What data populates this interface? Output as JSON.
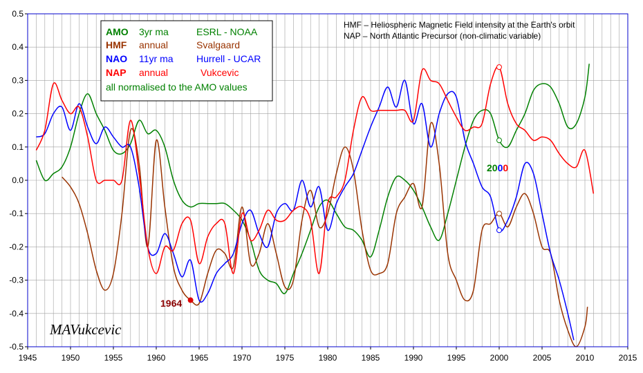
{
  "chart_data": {
    "type": "line",
    "xlim": [
      1945,
      2015
    ],
    "ylim": [
      -0.5,
      0.5
    ],
    "x_ticks": [
      "1945",
      "1950",
      "1955",
      "1960",
      "1965",
      "1970",
      "1975",
      "1980",
      "1985",
      "1990",
      "1995",
      "2000",
      "2005",
      "2010",
      "2015"
    ],
    "y_ticks": [
      "0.5",
      "0.4",
      "0.3",
      "0.2",
      "0.1",
      "0.0",
      "-0.1",
      "-0.2",
      "-0.3",
      "-0.4",
      "-0.5"
    ],
    "grid": true,
    "notes": [
      "HMF – Heliospheric Magnetic Field intensity at the Earth's orbit",
      "NAP – North Atlantic Precursor (non-climatic variable)"
    ],
    "legend": {
      "placement": "top-left",
      "rows": [
        {
          "code": "AMO",
          "avg": "3yr ma",
          "source": "ESRL - NOAA",
          "color": "#008000"
        },
        {
          "code": "HMF",
          "avg": "annual",
          "source": "Svalgaard",
          "color": "#993300"
        },
        {
          "code": "NAO",
          "avg": "11yr ma",
          "source": "Hurrell - UCAR",
          "color": "#0000ff"
        },
        {
          "code": "NAP",
          "avg": "annual",
          "source": "Vukcevic",
          "color": "#ff0000"
        }
      ],
      "footer": "all normalised to the AMO values"
    },
    "annotations": {
      "year_1964": "1964",
      "year_2000_a": "20",
      "year_2000_b": "0",
      "year_2000_c": "0",
      "signature": "MAVukcevic"
    },
    "series": [
      {
        "name": "AMO",
        "color": "#008000",
        "points": [
          [
            1946,
            0.06
          ],
          [
            1947,
            0.0
          ],
          [
            1948,
            0.02
          ],
          [
            1949,
            0.04
          ],
          [
            1950,
            0.1
          ],
          [
            1951,
            0.2
          ],
          [
            1952,
            0.26
          ],
          [
            1953,
            0.2
          ],
          [
            1954,
            0.15
          ],
          [
            1955,
            0.09
          ],
          [
            1956,
            0.08
          ],
          [
            1957,
            0.11
          ],
          [
            1958,
            0.18
          ],
          [
            1959,
            0.14
          ],
          [
            1960,
            0.15
          ],
          [
            1961,
            0.1
          ],
          [
            1962,
            0.0
          ],
          [
            1963,
            -0.06
          ],
          [
            1964,
            -0.08
          ],
          [
            1965,
            -0.07
          ],
          [
            1966,
            -0.07
          ],
          [
            1967,
            -0.07
          ],
          [
            1968,
            -0.07
          ],
          [
            1969,
            -0.09
          ],
          [
            1970,
            -0.12
          ],
          [
            1971,
            -0.18
          ],
          [
            1972,
            -0.27
          ],
          [
            1973,
            -0.3
          ],
          [
            1974,
            -0.31
          ],
          [
            1975,
            -0.34
          ],
          [
            1976,
            -0.28
          ],
          [
            1977,
            -0.22
          ],
          [
            1978,
            -0.15
          ],
          [
            1979,
            -0.08
          ],
          [
            1980,
            -0.06
          ],
          [
            1981,
            -0.1
          ],
          [
            1982,
            -0.14
          ],
          [
            1983,
            -0.15
          ],
          [
            1984,
            -0.18
          ],
          [
            1985,
            -0.23
          ],
          [
            1986,
            -0.15
          ],
          [
            1987,
            -0.05
          ],
          [
            1988,
            0.01
          ],
          [
            1989,
            0.0
          ],
          [
            1990,
            -0.03
          ],
          [
            1991,
            -0.08
          ],
          [
            1992,
            -0.14
          ],
          [
            1993,
            -0.18
          ],
          [
            1994,
            -0.1
          ],
          [
            1995,
            0.0
          ],
          [
            1996,
            0.1
          ],
          [
            1997,
            0.18
          ],
          [
            1998,
            0.21
          ],
          [
            1999,
            0.2
          ],
          [
            2000,
            0.12
          ],
          [
            2001,
            0.1
          ],
          [
            2002,
            0.15
          ],
          [
            2003,
            0.2
          ],
          [
            2004,
            0.27
          ],
          [
            2005,
            0.29
          ],
          [
            2006,
            0.28
          ],
          [
            2007,
            0.23
          ],
          [
            2008,
            0.16
          ],
          [
            2009,
            0.17
          ],
          [
            2010,
            0.25
          ],
          [
            2010.5,
            0.35
          ]
        ]
      },
      {
        "name": "HMF",
        "color": "#993300",
        "points": [
          [
            1949,
            0.01
          ],
          [
            1950,
            -0.02
          ],
          [
            1951,
            -0.07
          ],
          [
            1952,
            -0.16
          ],
          [
            1953,
            -0.27
          ],
          [
            1954,
            -0.33
          ],
          [
            1955,
            -0.28
          ],
          [
            1956,
            -0.1
          ],
          [
            1957,
            0.15
          ],
          [
            1958,
            0.05
          ],
          [
            1959,
            -0.2
          ],
          [
            1960,
            0.12
          ],
          [
            1961,
            -0.08
          ],
          [
            1962,
            -0.26
          ],
          [
            1963,
            -0.33
          ],
          [
            1964,
            -0.36
          ],
          [
            1965,
            -0.37
          ],
          [
            1966,
            -0.28
          ],
          [
            1967,
            -0.21
          ],
          [
            1968,
            -0.22
          ],
          [
            1969,
            -0.26
          ],
          [
            1970,
            -0.08
          ],
          [
            1971,
            -0.25
          ],
          [
            1972,
            -0.22
          ],
          [
            1973,
            -0.13
          ],
          [
            1974,
            -0.22
          ],
          [
            1975,
            -0.32
          ],
          [
            1976,
            -0.3
          ],
          [
            1977,
            -0.12
          ],
          [
            1978,
            -0.03
          ],
          [
            1979,
            -0.14
          ],
          [
            1980,
            -0.1
          ],
          [
            1981,
            0.02
          ],
          [
            1982,
            0.1
          ],
          [
            1983,
            0.03
          ],
          [
            1984,
            -0.15
          ],
          [
            1985,
            -0.27
          ],
          [
            1986,
            -0.28
          ],
          [
            1987,
            -0.25
          ],
          [
            1988,
            -0.1
          ],
          [
            1989,
            -0.05
          ],
          [
            1990,
            -0.01
          ],
          [
            1991,
            -0.08
          ],
          [
            1992,
            0.17
          ],
          [
            1993,
            0.05
          ],
          [
            1994,
            -0.22
          ],
          [
            1995,
            -0.3
          ],
          [
            1996,
            -0.36
          ],
          [
            1997,
            -0.33
          ],
          [
            1998,
            -0.15
          ],
          [
            1999,
            -0.13
          ],
          [
            2000,
            -0.1
          ],
          [
            2001,
            -0.14
          ],
          [
            2002,
            -0.08
          ],
          [
            2003,
            -0.04
          ],
          [
            2004,
            -0.1
          ],
          [
            2005,
            -0.2
          ],
          [
            2006,
            -0.22
          ],
          [
            2007,
            -0.36
          ],
          [
            2008,
            -0.45
          ],
          [
            2009,
            -0.5
          ],
          [
            2010,
            -0.44
          ],
          [
            2010.3,
            -0.38
          ]
        ]
      },
      {
        "name": "NAO",
        "color": "#0000ff",
        "points": [
          [
            1946,
            0.13
          ],
          [
            1947,
            0.14
          ],
          [
            1948,
            0.2
          ],
          [
            1949,
            0.22
          ],
          [
            1950,
            0.15
          ],
          [
            1951,
            0.23
          ],
          [
            1952,
            0.16
          ],
          [
            1953,
            0.11
          ],
          [
            1954,
            0.16
          ],
          [
            1955,
            0.13
          ],
          [
            1956,
            0.1
          ],
          [
            1957,
            0.1
          ],
          [
            1958,
            -0.02
          ],
          [
            1959,
            -0.2
          ],
          [
            1960,
            -0.22
          ],
          [
            1961,
            -0.16
          ],
          [
            1962,
            -0.22
          ],
          [
            1963,
            -0.29
          ],
          [
            1964,
            -0.24
          ],
          [
            1965,
            -0.36
          ],
          [
            1966,
            -0.34
          ],
          [
            1967,
            -0.28
          ],
          [
            1968,
            -0.25
          ],
          [
            1969,
            -0.22
          ],
          [
            1970,
            -0.13
          ],
          [
            1971,
            -0.09
          ],
          [
            1972,
            -0.16
          ],
          [
            1973,
            -0.2
          ],
          [
            1974,
            -0.1
          ],
          [
            1975,
            -0.07
          ],
          [
            1976,
            -0.09
          ],
          [
            1977,
            0.0
          ],
          [
            1978,
            -0.08
          ],
          [
            1979,
            -0.02
          ],
          [
            1980,
            -0.15
          ],
          [
            1981,
            -0.07
          ],
          [
            1982,
            -0.02
          ],
          [
            1983,
            0.02
          ],
          [
            1984,
            0.09
          ],
          [
            1985,
            0.16
          ],
          [
            1986,
            0.22
          ],
          [
            1987,
            0.28
          ],
          [
            1988,
            0.22
          ],
          [
            1989,
            0.3
          ],
          [
            1990,
            0.17
          ],
          [
            1991,
            0.23
          ],
          [
            1992,
            0.1
          ],
          [
            1993,
            0.2
          ],
          [
            1994,
            0.26
          ],
          [
            1995,
            0.25
          ],
          [
            1996,
            0.12
          ],
          [
            1997,
            0.05
          ],
          [
            1998,
            -0.02
          ],
          [
            1999,
            -0.05
          ],
          [
            2000,
            -0.15
          ],
          [
            2001,
            -0.12
          ],
          [
            2002,
            -0.05
          ],
          [
            2003,
            0.05
          ],
          [
            2004,
            0.02
          ],
          [
            2005,
            -0.1
          ],
          [
            2006,
            -0.22
          ],
          [
            2007,
            -0.3
          ],
          [
            2008,
            -0.4
          ],
          [
            2008.7,
            -0.48
          ]
        ]
      },
      {
        "name": "NAP",
        "color": "#ff0000",
        "points": [
          [
            1946,
            0.09
          ],
          [
            1947,
            0.15
          ],
          [
            1948,
            0.29
          ],
          [
            1949,
            0.24
          ],
          [
            1950,
            0.2
          ],
          [
            1951,
            0.22
          ],
          [
            1952,
            0.13
          ],
          [
            1953,
            0.0
          ],
          [
            1954,
            0.0
          ],
          [
            1955,
            0.0
          ],
          [
            1956,
            0.0
          ],
          [
            1957,
            0.18
          ],
          [
            1958,
            0.02
          ],
          [
            1959,
            -0.2
          ],
          [
            1960,
            -0.28
          ],
          [
            1961,
            -0.2
          ],
          [
            1962,
            -0.21
          ],
          [
            1963,
            -0.13
          ],
          [
            1964,
            -0.12
          ],
          [
            1965,
            -0.25
          ],
          [
            1966,
            -0.17
          ],
          [
            1967,
            -0.13
          ],
          [
            1968,
            -0.13
          ],
          [
            1969,
            -0.28
          ],
          [
            1970,
            -0.1
          ],
          [
            1971,
            -0.18
          ],
          [
            1972,
            -0.15
          ],
          [
            1973,
            -0.09
          ],
          [
            1974,
            -0.12
          ],
          [
            1975,
            -0.12
          ],
          [
            1976,
            -0.09
          ],
          [
            1977,
            -0.08
          ],
          [
            1978,
            -0.12
          ],
          [
            1979,
            -0.28
          ],
          [
            1980,
            -0.07
          ],
          [
            1981,
            -0.05
          ],
          [
            1982,
            0.0
          ],
          [
            1983,
            0.15
          ],
          [
            1984,
            0.25
          ],
          [
            1985,
            0.21
          ],
          [
            1986,
            0.21
          ],
          [
            1987,
            0.21
          ],
          [
            1988,
            0.21
          ],
          [
            1989,
            0.21
          ],
          [
            1990,
            0.18
          ],
          [
            1991,
            0.33
          ],
          [
            1992,
            0.3
          ],
          [
            1993,
            0.29
          ],
          [
            1994,
            0.24
          ],
          [
            1995,
            0.19
          ],
          [
            1996,
            0.15
          ],
          [
            1997,
            0.16
          ],
          [
            1998,
            0.17
          ],
          [
            1999,
            0.29
          ],
          [
            2000,
            0.34
          ],
          [
            2001,
            0.23
          ],
          [
            2002,
            0.17
          ],
          [
            2003,
            0.15
          ],
          [
            2004,
            0.12
          ],
          [
            2005,
            0.13
          ],
          [
            2006,
            0.12
          ],
          [
            2007,
            0.08
          ],
          [
            2008,
            0.05
          ],
          [
            2009,
            0.04
          ],
          [
            2010,
            0.09
          ],
          [
            2011,
            -0.04
          ]
        ]
      }
    ]
  }
}
